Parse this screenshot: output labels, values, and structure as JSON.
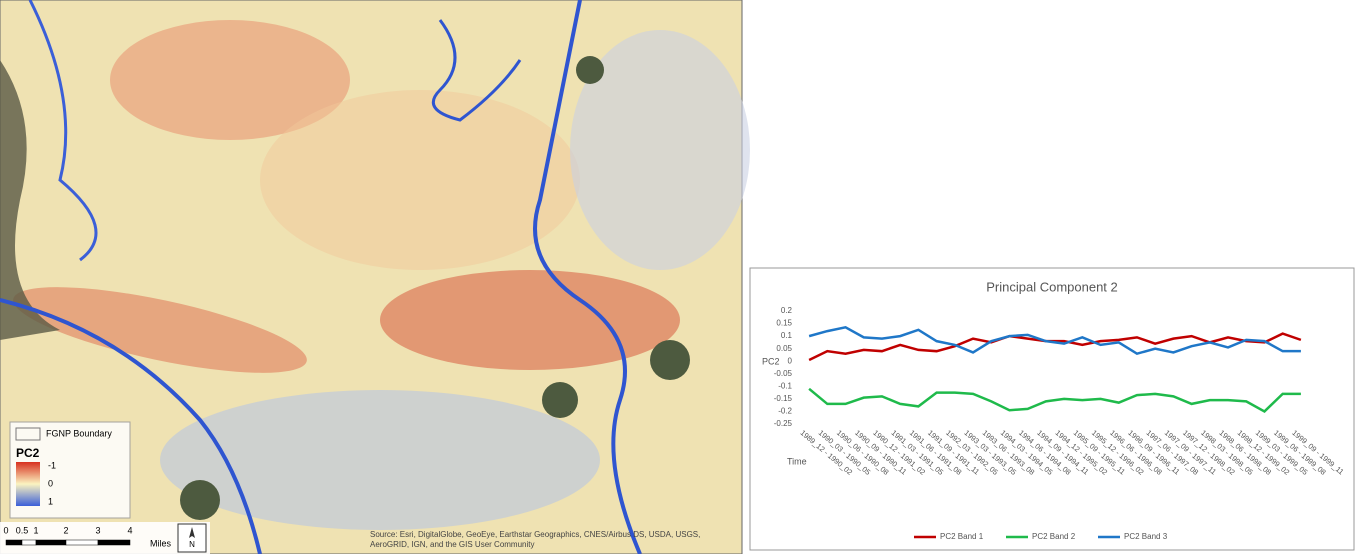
{
  "map": {
    "legend": {
      "boundary": "FGNP Boundary",
      "title": "PC2",
      "labels": [
        "-1",
        "0",
        "1"
      ]
    },
    "scale": {
      "labels": [
        "0",
        "0.5",
        "1",
        "2",
        "3",
        "4"
      ],
      "unit": "Miles"
    },
    "north": "N",
    "source": "Source: Esri, DigitalGlobe, GeoEye, Earthstar Geographics, CNES/Airbus DS, USDA, USGS, AeroGRID, IGN, and the GIS User Community"
  },
  "chart_data": {
    "type": "line",
    "title": "Principal Component 2",
    "x_label": "Time",
    "y_label": "PC2",
    "categories": [
      "1989_12 - 1990_02",
      "1990_03 - 1990_05",
      "1990_06 - 1990_08",
      "1990_09 - 1990_11",
      "1990_12 - 1991_02",
      "1991_03 - 1991_05",
      "1991_06 - 1991_08",
      "1991_09 - 1991_11",
      "1992_03 - 1992_05",
      "1993_03 - 1993_05",
      "1993_06 - 1993_08",
      "1994_03 - 1994_05",
      "1994_06 - 1994_08",
      "1994_09 - 1994_11",
      "1994_12 - 1995_02",
      "1995_09 - 1995_11",
      "1995_12 - 1996_02",
      "1996_06 - 1996_08",
      "1996_09 - 1996_11",
      "1997_06 - 1997_08",
      "1997_09 - 1997_11",
      "1997_12 - 1998_02",
      "1998_03 - 1998_05",
      "1998_06 - 1998_08",
      "1998_12 - 1999_02",
      "1999_03 - 1999_05",
      "1999_06 - 1999_08",
      "1999_09 - 1999_11"
    ],
    "series": [
      {
        "name": "PC2 Band 1",
        "color": "#c00000",
        "values": [
          0.005,
          0.04,
          0.03,
          0.045,
          0.04,
          0.065,
          0.045,
          0.04,
          0.06,
          0.09,
          0.075,
          0.1,
          0.09,
          0.08,
          0.08,
          0.065,
          0.08,
          0.085,
          0.095,
          0.07,
          0.09,
          0.1,
          0.075,
          0.095,
          0.08,
          0.075,
          0.11,
          0.085
        ]
      },
      {
        "name": "PC2 Band 2",
        "color": "#1fba4b",
        "values": [
          -0.11,
          -0.17,
          -0.17,
          -0.145,
          -0.14,
          -0.17,
          -0.18,
          -0.125,
          -0.125,
          -0.13,
          -0.16,
          -0.195,
          -0.19,
          -0.16,
          -0.15,
          -0.155,
          -0.15,
          -0.165,
          -0.135,
          -0.13,
          -0.14,
          -0.17,
          -0.155,
          -0.155,
          -0.16,
          -0.2,
          -0.13,
          -0.13
        ]
      },
      {
        "name": "PC2 Band 3",
        "color": "#1f77c8",
        "values": [
          0.1,
          0.12,
          0.135,
          0.095,
          0.09,
          0.1,
          0.125,
          0.08,
          0.065,
          0.035,
          0.08,
          0.1,
          0.105,
          0.08,
          0.07,
          0.095,
          0.065,
          0.075,
          0.03,
          0.05,
          0.035,
          0.06,
          0.075,
          0.055,
          0.085,
          0.08,
          0.04,
          0.04
        ]
      }
    ],
    "ylim": [
      -0.25,
      0.2
    ],
    "yticks": [
      0.2,
      0.15,
      0.1,
      0.05,
      0,
      -0.05,
      -0.1,
      -0.15,
      -0.2,
      -0.25
    ],
    "grid": false,
    "legend": "bottom"
  }
}
